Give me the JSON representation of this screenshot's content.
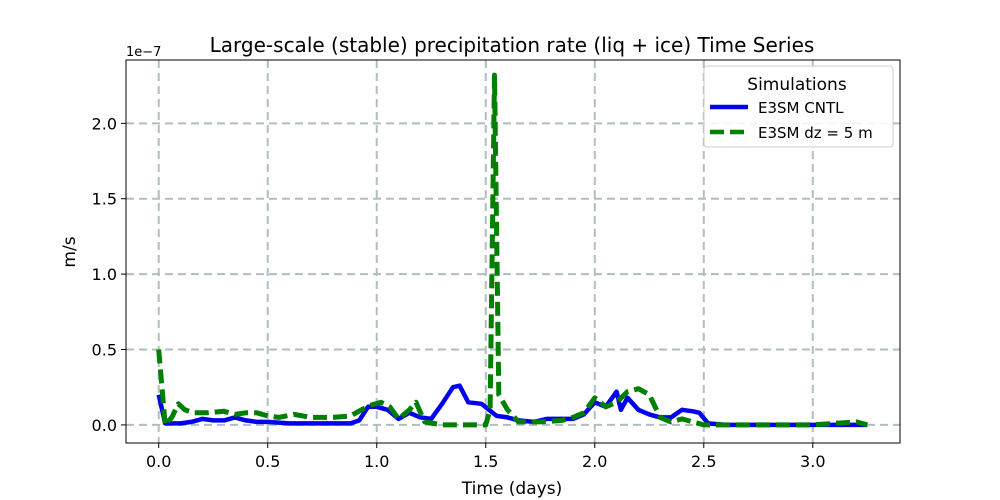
{
  "chart_data": {
    "type": "line",
    "title": "Large-scale (stable) precipitation rate (liq + ice) Time Series",
    "xlabel": "Time (days)",
    "ylabel": "m/s",
    "y_offset_label": "1e−7",
    "xlim": [
      -0.15,
      3.4
    ],
    "ylim": [
      -0.12,
      2.42
    ],
    "x_ticks": [
      0.0,
      0.5,
      1.0,
      1.5,
      2.0,
      2.5,
      3.0
    ],
    "x_tick_labels": [
      "0.0",
      "0.5",
      "1.0",
      "1.5",
      "2.0",
      "2.5",
      "3.0"
    ],
    "y_ticks": [
      0.0,
      0.5,
      1.0,
      1.5,
      2.0
    ],
    "y_tick_labels": [
      "0.0",
      "0.5",
      "1.0",
      "1.5",
      "2.0"
    ],
    "grid": true,
    "legend": {
      "title": "Simulations",
      "position": "top-right"
    },
    "series": [
      {
        "name": "E3SM CNTL",
        "color": "#0000ee",
        "style": "solid",
        "points": [
          [
            0.0,
            0.2
          ],
          [
            0.03,
            0.01
          ],
          [
            0.1,
            0.01
          ],
          [
            0.15,
            0.02
          ],
          [
            0.2,
            0.04
          ],
          [
            0.25,
            0.03
          ],
          [
            0.3,
            0.03
          ],
          [
            0.35,
            0.05
          ],
          [
            0.4,
            0.03
          ],
          [
            0.45,
            0.02
          ],
          [
            0.5,
            0.02
          ],
          [
            0.6,
            0.01
          ],
          [
            0.7,
            0.01
          ],
          [
            0.8,
            0.01
          ],
          [
            0.88,
            0.01
          ],
          [
            0.92,
            0.03
          ],
          [
            0.96,
            0.12
          ],
          [
            1.0,
            0.12
          ],
          [
            1.05,
            0.1
          ],
          [
            1.1,
            0.04
          ],
          [
            1.15,
            0.08
          ],
          [
            1.2,
            0.05
          ],
          [
            1.25,
            0.04
          ],
          [
            1.3,
            0.14
          ],
          [
            1.35,
            0.25
          ],
          [
            1.38,
            0.26
          ],
          [
            1.42,
            0.15
          ],
          [
            1.48,
            0.14
          ],
          [
            1.55,
            0.06
          ],
          [
            1.6,
            0.05
          ],
          [
            1.65,
            0.03
          ],
          [
            1.72,
            0.02
          ],
          [
            1.78,
            0.04
          ],
          [
            1.85,
            0.04
          ],
          [
            1.9,
            0.04
          ],
          [
            1.95,
            0.07
          ],
          [
            2.0,
            0.15
          ],
          [
            2.05,
            0.12
          ],
          [
            2.1,
            0.22
          ],
          [
            2.12,
            0.1
          ],
          [
            2.15,
            0.18
          ],
          [
            2.2,
            0.1
          ],
          [
            2.25,
            0.07
          ],
          [
            2.3,
            0.05
          ],
          [
            2.35,
            0.05
          ],
          [
            2.4,
            0.1
          ],
          [
            2.45,
            0.09
          ],
          [
            2.48,
            0.08
          ],
          [
            2.52,
            0.01
          ],
          [
            2.6,
            0.0
          ],
          [
            2.8,
            0.0
          ],
          [
            3.0,
            0.0
          ],
          [
            3.2,
            0.0
          ],
          [
            3.25,
            0.0
          ]
        ]
      },
      {
        "name": "E3SM dz = 5 m",
        "color": "#007f00",
        "style": "dashed",
        "points": [
          [
            0.0,
            0.5
          ],
          [
            0.03,
            0.0
          ],
          [
            0.06,
            0.05
          ],
          [
            0.09,
            0.14
          ],
          [
            0.12,
            0.1
          ],
          [
            0.16,
            0.08
          ],
          [
            0.22,
            0.08
          ],
          [
            0.3,
            0.09
          ],
          [
            0.35,
            0.07
          ],
          [
            0.4,
            0.08
          ],
          [
            0.45,
            0.08
          ],
          [
            0.5,
            0.06
          ],
          [
            0.55,
            0.05
          ],
          [
            0.62,
            0.07
          ],
          [
            0.7,
            0.05
          ],
          [
            0.8,
            0.05
          ],
          [
            0.88,
            0.06
          ],
          [
            0.93,
            0.1
          ],
          [
            0.97,
            0.13
          ],
          [
            1.02,
            0.15
          ],
          [
            1.06,
            0.12
          ],
          [
            1.1,
            0.04
          ],
          [
            1.15,
            0.1
          ],
          [
            1.18,
            0.15
          ],
          [
            1.22,
            0.02
          ],
          [
            1.3,
            0.0
          ],
          [
            1.4,
            0.0
          ],
          [
            1.5,
            0.0
          ],
          [
            1.52,
            0.1
          ],
          [
            1.54,
            2.32
          ],
          [
            1.56,
            0.2
          ],
          [
            1.6,
            0.1
          ],
          [
            1.65,
            0.02
          ],
          [
            1.75,
            0.02
          ],
          [
            1.85,
            0.03
          ],
          [
            1.9,
            0.05
          ],
          [
            1.95,
            0.08
          ],
          [
            2.0,
            0.18
          ],
          [
            2.05,
            0.12
          ],
          [
            2.1,
            0.15
          ],
          [
            2.15,
            0.22
          ],
          [
            2.2,
            0.24
          ],
          [
            2.25,
            0.2
          ],
          [
            2.3,
            0.05
          ],
          [
            2.35,
            0.02
          ],
          [
            2.4,
            0.04
          ],
          [
            2.45,
            0.02
          ],
          [
            2.5,
            0.0
          ],
          [
            2.6,
            0.0
          ],
          [
            2.8,
            0.0
          ],
          [
            3.0,
            0.0
          ],
          [
            3.2,
            0.02
          ],
          [
            3.25,
            0.0
          ]
        ]
      }
    ]
  }
}
